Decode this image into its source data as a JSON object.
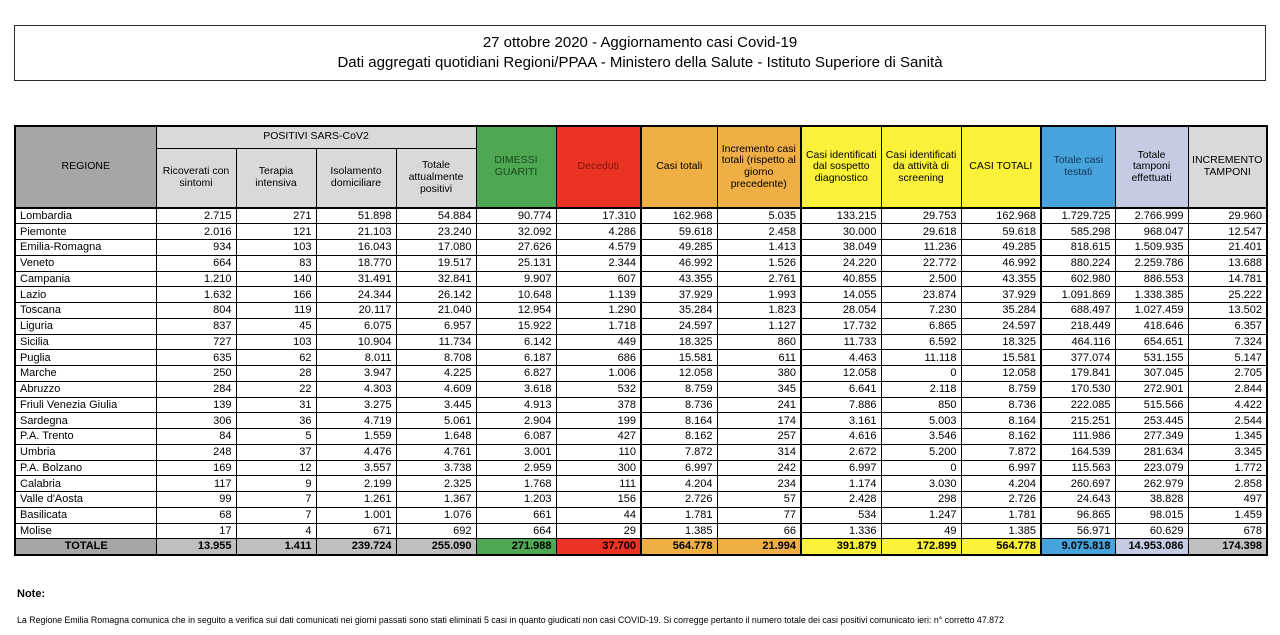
{
  "title": {
    "line1": "27 ottobre 2020 - Aggiornamento casi Covid-19",
    "line2": "Dati aggregati quotidiani Regioni/PPAA - Ministero della Salute - Istituto Superiore di Sanità"
  },
  "table": {
    "group_header": "POSITIVI SARS-CoV2",
    "columns": [
      "REGIONE",
      "Ricoverati con sintomi",
      "Terapia intensiva",
      "Isolamento domiciliare",
      "Totale attualmente positivi",
      "DIMESSI GUARITI",
      "Deceduti",
      "Casi totali",
      "Incremento casi totali (rispetto al giorno precedente)",
      "Casi identificati dal sospetto diagnostico",
      "Casi identificati da attività di screening",
      "CASI TOTALI",
      "Totale casi testati",
      "Totale tamponi effettuati",
      "INCREMENTO TAMPONI"
    ],
    "rows": [
      {
        "region": "Lombardia",
        "values": [
          "2.715",
          "271",
          "51.898",
          "54.884",
          "90.774",
          "17.310",
          "162.968",
          "5.035",
          "133.215",
          "29.753",
          "162.968",
          "1.729.725",
          "2.766.999",
          "29.960"
        ]
      },
      {
        "region": "Piemonte",
        "values": [
          "2.016",
          "121",
          "21.103",
          "23.240",
          "32.092",
          "4.286",
          "59.618",
          "2.458",
          "30.000",
          "29.618",
          "59.618",
          "585.298",
          "968.047",
          "12.547"
        ]
      },
      {
        "region": "Emilia-Romagna",
        "values": [
          "934",
          "103",
          "16.043",
          "17.080",
          "27.626",
          "4.579",
          "49.285",
          "1.413",
          "38.049",
          "11.236",
          "49.285",
          "818.615",
          "1.509.935",
          "21.401"
        ]
      },
      {
        "region": "Veneto",
        "values": [
          "664",
          "83",
          "18.770",
          "19.517",
          "25.131",
          "2.344",
          "46.992",
          "1.526",
          "24.220",
          "22.772",
          "46.992",
          "880.224",
          "2.259.786",
          "13.688"
        ]
      },
      {
        "region": "Campania",
        "values": [
          "1.210",
          "140",
          "31.491",
          "32.841",
          "9.907",
          "607",
          "43.355",
          "2.761",
          "40.855",
          "2.500",
          "43.355",
          "602.980",
          "886.553",
          "14.781"
        ]
      },
      {
        "region": "Lazio",
        "values": [
          "1.632",
          "166",
          "24.344",
          "26.142",
          "10.648",
          "1.139",
          "37.929",
          "1.993",
          "14.055",
          "23.874",
          "37.929",
          "1.091.869",
          "1.338.385",
          "25.222"
        ]
      },
      {
        "region": "Toscana",
        "values": [
          "804",
          "119",
          "20.117",
          "21.040",
          "12.954",
          "1.290",
          "35.284",
          "1.823",
          "28.054",
          "7.230",
          "35.284",
          "688.497",
          "1.027.459",
          "13.502"
        ]
      },
      {
        "region": "Liguria",
        "values": [
          "837",
          "45",
          "6.075",
          "6.957",
          "15.922",
          "1.718",
          "24.597",
          "1.127",
          "17.732",
          "6.865",
          "24.597",
          "218.449",
          "418.646",
          "6.357"
        ]
      },
      {
        "region": "Sicilia",
        "values": [
          "727",
          "103",
          "10.904",
          "11.734",
          "6.142",
          "449",
          "18.325",
          "860",
          "11.733",
          "6.592",
          "18.325",
          "464.116",
          "654.651",
          "7.324"
        ]
      },
      {
        "region": "Puglia",
        "values": [
          "635",
          "62",
          "8.011",
          "8.708",
          "6.187",
          "686",
          "15.581",
          "611",
          "4.463",
          "11.118",
          "15.581",
          "377.074",
          "531.155",
          "5.147"
        ]
      },
      {
        "region": "Marche",
        "values": [
          "250",
          "28",
          "3.947",
          "4.225",
          "6.827",
          "1.006",
          "12.058",
          "380",
          "12.058",
          "0",
          "12.058",
          "179.841",
          "307.045",
          "2.705"
        ]
      },
      {
        "region": "Abruzzo",
        "values": [
          "284",
          "22",
          "4.303",
          "4.609",
          "3.618",
          "532",
          "8.759",
          "345",
          "6.641",
          "2.118",
          "8.759",
          "170.530",
          "272.901",
          "2.844"
        ]
      },
      {
        "region": "Friuli Venezia Giulia",
        "values": [
          "139",
          "31",
          "3.275",
          "3.445",
          "4.913",
          "378",
          "8.736",
          "241",
          "7.886",
          "850",
          "8.736",
          "222.085",
          "515.566",
          "4.422"
        ]
      },
      {
        "region": "Sardegna",
        "values": [
          "306",
          "36",
          "4.719",
          "5.061",
          "2.904",
          "199",
          "8.164",
          "174",
          "3.161",
          "5.003",
          "8.164",
          "215.251",
          "253.445",
          "2.544"
        ]
      },
      {
        "region": "P.A. Trento",
        "values": [
          "84",
          "5",
          "1.559",
          "1.648",
          "6.087",
          "427",
          "8.162",
          "257",
          "4.616",
          "3.546",
          "8.162",
          "111.986",
          "277.349",
          "1.345"
        ]
      },
      {
        "region": "Umbria",
        "values": [
          "248",
          "37",
          "4.476",
          "4.761",
          "3.001",
          "110",
          "7.872",
          "314",
          "2.672",
          "5.200",
          "7.872",
          "164.539",
          "281.634",
          "3.345"
        ]
      },
      {
        "region": "P.A. Bolzano",
        "values": [
          "169",
          "12",
          "3.557",
          "3.738",
          "2.959",
          "300",
          "6.997",
          "242",
          "6.997",
          "0",
          "6.997",
          "115.563",
          "223.079",
          "1.772"
        ]
      },
      {
        "region": "Calabria",
        "values": [
          "117",
          "9",
          "2.199",
          "2.325",
          "1.768",
          "111",
          "4.204",
          "234",
          "1.174",
          "3.030",
          "4.204",
          "260.697",
          "262.979",
          "2.858"
        ]
      },
      {
        "region": "Valle d'Aosta",
        "values": [
          "99",
          "7",
          "1.261",
          "1.367",
          "1.203",
          "156",
          "2.726",
          "57",
          "2.428",
          "298",
          "2.726",
          "24.643",
          "38.828",
          "497"
        ]
      },
      {
        "region": "Basilicata",
        "values": [
          "68",
          "7",
          "1.001",
          "1.076",
          "661",
          "44",
          "1.781",
          "77",
          "534",
          "1.247",
          "1.781",
          "96.865",
          "98.015",
          "1.459"
        ]
      },
      {
        "region": "Molise",
        "values": [
          "17",
          "4",
          "671",
          "692",
          "664",
          "29",
          "1.385",
          "66",
          "1.336",
          "49",
          "1.385",
          "56.971",
          "60.629",
          "678"
        ]
      }
    ],
    "total_row": {
      "region": "TOTALE",
      "values": [
        "13.955",
        "1.411",
        "239.724",
        "255.090",
        "271.988",
        "37.700",
        "564.778",
        "21.994",
        "391.879",
        "172.899",
        "564.778",
        "9.075.818",
        "14.953.086",
        "174.398"
      ]
    }
  },
  "notes": {
    "label": "Note:",
    "text": "La Regione Emilia Romagna comunica che in seguito a verifica sui dati comunicati nei giorni passati sono stati eliminati 5 casi in quanto giudicati non casi COVID-19. Si corregge pertanto il numero totale dei casi positivi comunicato ieri: n° corretto 47.872"
  },
  "colors": {
    "header_region": "#A6A6A6",
    "header_light_gray": "#D9D9D9",
    "green": "#4EA752",
    "red": "#EB3323",
    "orange": "#F0AF45",
    "yellow": "#FBF138",
    "blue": "#47A3DC",
    "lavender": "#C5CBE2",
    "total_gray": "#BFBFBF"
  }
}
